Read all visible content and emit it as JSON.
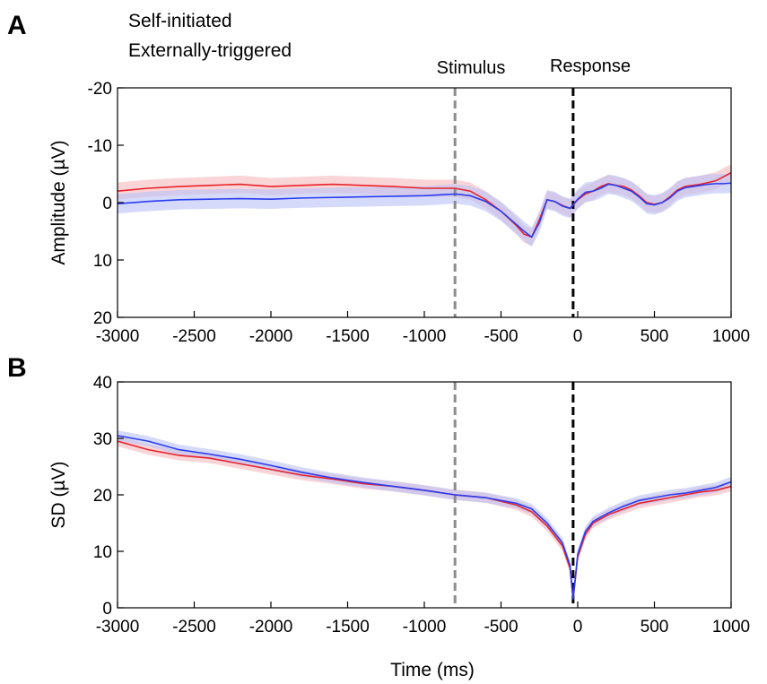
{
  "legend": {
    "items": [
      {
        "label": "Self-initiated",
        "color": "#e8232b"
      },
      {
        "label": "Externally-triggered",
        "color": "#1a8ad4"
      }
    ],
    "placement": "top-left"
  },
  "annotations": {
    "stimulus": "Stimulus",
    "response": "Response"
  },
  "xlabel": "Time (ms)",
  "colors": {
    "self_line": "#e8232b",
    "self_band": "#f6b9bd",
    "ext_line": "#2a3cf0",
    "ext_band": "#b9c2f6",
    "stimulus_line": "#8c8c8c",
    "response_line": "#000000"
  },
  "chart_data": [
    {
      "panel": "A",
      "type": "line",
      "ylabel": "Amplitude (µV)",
      "xlim": [
        -3000,
        1000
      ],
      "ylim": [
        -20,
        20
      ],
      "y_inverted": true,
      "xticks": [
        -3000,
        -2500,
        -2000,
        -1500,
        -1000,
        -500,
        0,
        500,
        1000
      ],
      "yticks": [
        -20,
        -10,
        0,
        10,
        20
      ],
      "vlines": [
        {
          "x": -800,
          "label": "Stimulus"
        },
        {
          "x": -30,
          "label": "Response"
        }
      ],
      "x": [
        -3000,
        -2800,
        -2600,
        -2400,
        -2200,
        -2000,
        -1800,
        -1600,
        -1400,
        -1200,
        -1000,
        -800,
        -700,
        -600,
        -500,
        -400,
        -350,
        -300,
        -250,
        -200,
        -150,
        -100,
        -50,
        0,
        50,
        100,
        150,
        200,
        250,
        300,
        350,
        400,
        450,
        500,
        550,
        600,
        650,
        700,
        750,
        800,
        850,
        900,
        950,
        1000
      ],
      "series": [
        {
          "name": "Self-initiated",
          "band": 1.5,
          "values": [
            -2,
            -2.5,
            -2.8,
            -3,
            -3.2,
            -2.8,
            -3,
            -3.2,
            -3,
            -2.8,
            -2.5,
            -2.5,
            -2,
            -0.5,
            1.5,
            4,
            5.5,
            6,
            3,
            -0.5,
            -0.2,
            0.5,
            1,
            -0.5,
            -1.5,
            -2,
            -2.8,
            -3.3,
            -3,
            -2.8,
            -2.2,
            -1.2,
            0,
            0.3,
            0,
            -1,
            -2.2,
            -2.8,
            -3,
            -3.2,
            -3.5,
            -3.8,
            -4.5,
            -5.2
          ]
        },
        {
          "name": "Externally-triggered",
          "band": 1.7,
          "values": [
            0.2,
            -0.2,
            -0.5,
            -0.6,
            -0.7,
            -0.6,
            -0.8,
            -0.9,
            -1,
            -1.1,
            -1.2,
            -1.5,
            -1.2,
            -0.2,
            1.5,
            3.8,
            5,
            6,
            3.5,
            -0.5,
            -0.2,
            0.6,
            1,
            -0.6,
            -1.8,
            -2,
            -2.5,
            -3.2,
            -3,
            -2.5,
            -2,
            -1,
            0.2,
            0.4,
            0,
            -0.8,
            -2,
            -2.6,
            -2.8,
            -3,
            -3.2,
            -3.3,
            -3.3,
            -3.4
          ]
        }
      ]
    },
    {
      "panel": "B",
      "type": "line",
      "ylabel": "SD (µV)",
      "xlim": [
        -3000,
        1000
      ],
      "ylim": [
        0,
        40
      ],
      "y_inverted": false,
      "xticks": [
        -3000,
        -2500,
        -2000,
        -1500,
        -1000,
        -500,
        0,
        500,
        1000
      ],
      "yticks": [
        0,
        10,
        20,
        30,
        40
      ],
      "vlines": [
        {
          "x": -800,
          "label": "Stimulus"
        },
        {
          "x": -30,
          "label": "Response"
        }
      ],
      "x": [
        -3000,
        -2800,
        -2600,
        -2400,
        -2200,
        -2000,
        -1800,
        -1600,
        -1400,
        -1200,
        -1000,
        -800,
        -600,
        -400,
        -300,
        -200,
        -100,
        -50,
        -30,
        0,
        50,
        100,
        200,
        300,
        400,
        500,
        600,
        700,
        800,
        900,
        1000
      ],
      "series": [
        {
          "name": "Self-initiated",
          "band": 0.9,
          "values": [
            29.5,
            28,
            27,
            26.5,
            25.5,
            24.5,
            23.5,
            22.8,
            22,
            21.5,
            20.8,
            20,
            19.5,
            18.2,
            17,
            14.5,
            11,
            7,
            1.5,
            9,
            13,
            15,
            16.5,
            17.5,
            18.5,
            19,
            19.5,
            20,
            20.5,
            20.8,
            21.5
          ]
        },
        {
          "name": "Externally-triggered",
          "band": 0.9,
          "values": [
            30.5,
            29.5,
            28,
            27.2,
            26.3,
            25.2,
            24,
            23,
            22.2,
            21.5,
            20.8,
            20,
            19.5,
            18.5,
            17.5,
            15,
            11.5,
            7.5,
            1.5,
            9.5,
            13.5,
            15.3,
            16.8,
            18,
            19,
            19.5,
            20,
            20.3,
            20.8,
            21.3,
            22.3
          ]
        }
      ]
    }
  ],
  "panels": [
    {
      "letter": "A"
    },
    {
      "letter": "B"
    }
  ]
}
